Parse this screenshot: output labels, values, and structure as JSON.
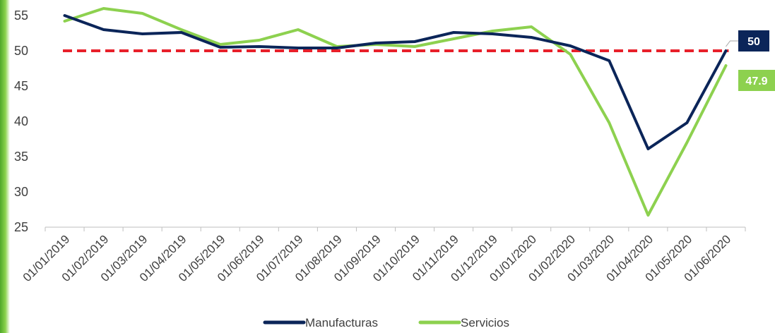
{
  "chart_data": {
    "type": "line",
    "title": "",
    "xlabel": "",
    "ylabel": "",
    "ylim": [
      25,
      55
    ],
    "yticks": [
      "25",
      "30",
      "35",
      "40",
      "45",
      "50",
      "55"
    ],
    "categories": [
      "01/01/2019",
      "01/02/2019",
      "01/03/2019",
      "01/04/2019",
      "01/05/2019",
      "01/06/2019",
      "01/07/2019",
      "01/08/2019",
      "01/09/2019",
      "01/10/2019",
      "01/11/2019",
      "01/12/2019",
      "01/01/2020",
      "01/02/2020",
      "01/03/2020",
      "01/04/2020",
      "01/05/2020",
      "01/06/2020"
    ],
    "series": [
      {
        "name": "Manufacturas",
        "color": "#0b2559",
        "values": [
          55.0,
          53.0,
          52.4,
          52.6,
          50.5,
          50.6,
          50.4,
          50.4,
          51.1,
          51.3,
          52.6,
          52.4,
          51.9,
          50.7,
          48.6,
          36.1,
          39.8,
          50.0
        ]
      },
      {
        "name": "Servicios",
        "color": "#8dd14f",
        "values": [
          54.2,
          56.0,
          55.3,
          53.0,
          50.9,
          51.5,
          53.0,
          50.6,
          50.9,
          50.6,
          51.7,
          52.8,
          53.4,
          49.5,
          39.8,
          26.7,
          37.0,
          47.9
        ]
      }
    ],
    "reference_line": {
      "value": 50,
      "color": "#e8202a"
    },
    "data_labels": [
      {
        "series": "Manufacturas",
        "text": "50",
        "bg": "#0b2559"
      },
      {
        "series": "Servicios",
        "text": "47.9",
        "bg": "#8dd14f"
      }
    ],
    "legend": {
      "position": "bottom"
    },
    "grid": false
  }
}
